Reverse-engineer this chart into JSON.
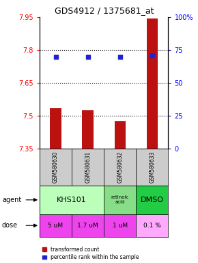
{
  "title": "GDS4912 / 1375681_at",
  "samples": [
    "GSM580630",
    "GSM580631",
    "GSM580632",
    "GSM580633"
  ],
  "bar_values": [
    7.535,
    7.525,
    7.475,
    7.945
  ],
  "percentile_values": [
    70,
    70,
    70,
    71
  ],
  "y_min": 7.35,
  "y_max": 7.95,
  "y_ticks": [
    7.35,
    7.5,
    7.65,
    7.8,
    7.95
  ],
  "y2_ticks": [
    0,
    25,
    50,
    75,
    100
  ],
  "bar_color": "#bb1111",
  "dot_color": "#2222cc",
  "dose_row": [
    "5 uM",
    "1.7 uM",
    "1 uM",
    "0.1 %"
  ],
  "dose_colors": [
    "#ee44ee",
    "#ee44ee",
    "#ee44ee",
    "#ffaaff"
  ],
  "sample_bg": "#cccccc",
  "agent_khs_color": "#bbffbb",
  "agent_ret_color": "#88dd88",
  "agent_dmso_color": "#22cc44",
  "legend_red_label": "transformed count",
  "legend_blue_label": "percentile rank within the sample"
}
